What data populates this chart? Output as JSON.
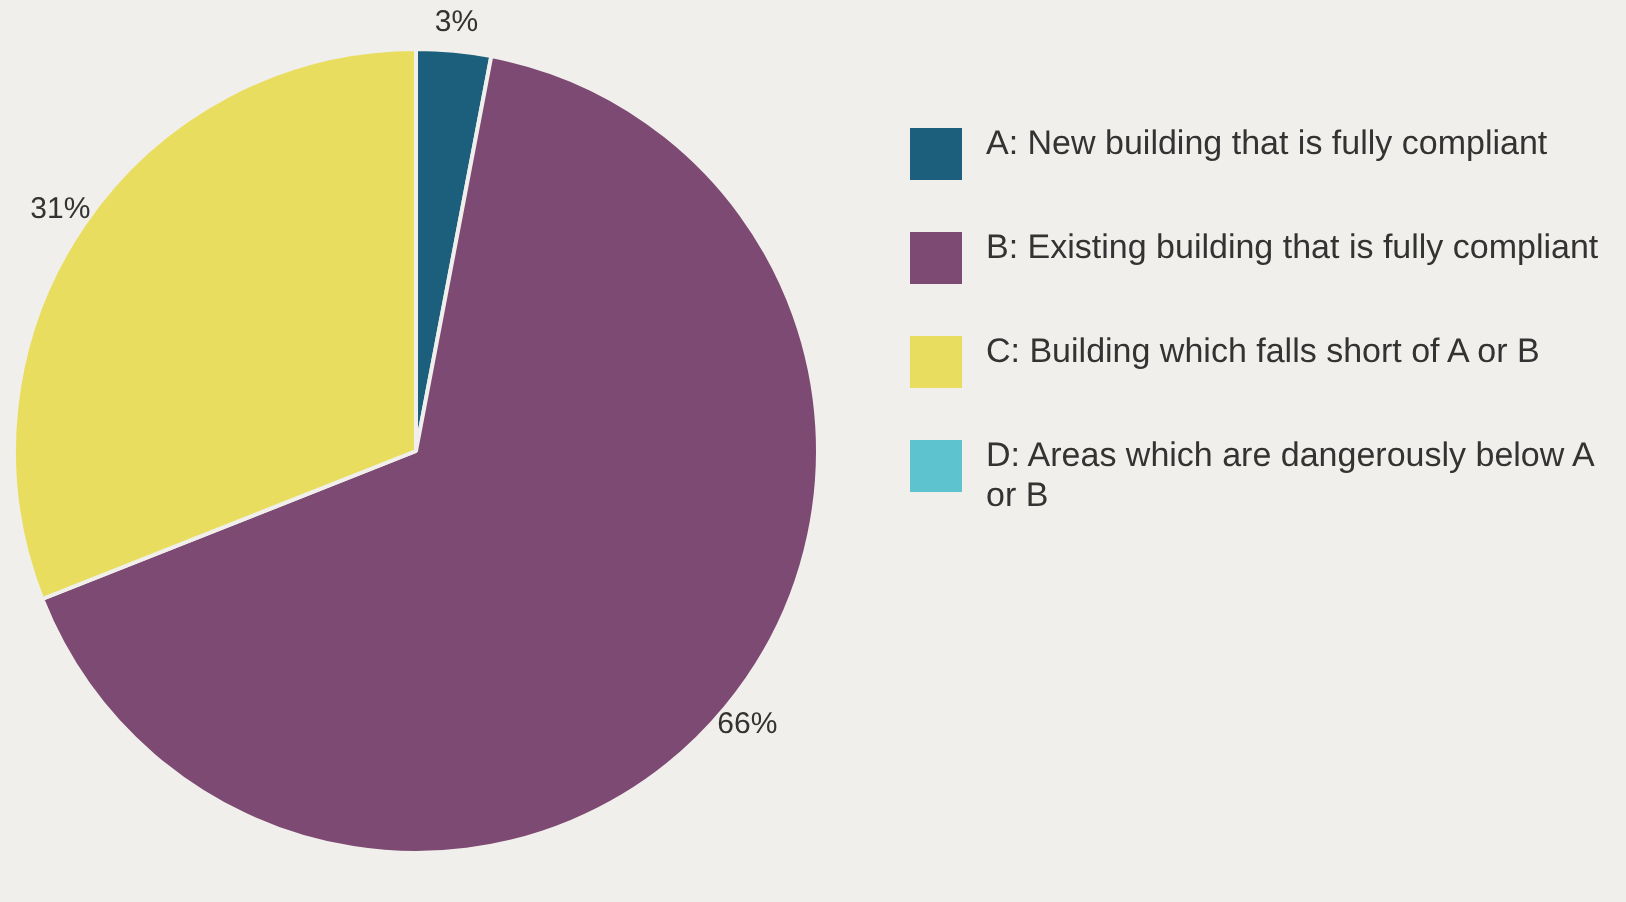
{
  "chart_data": {
    "type": "pie",
    "categories": [
      "A: New building that is fully compliant",
      "B: Existing building that is fully compliant",
      "C: Building which falls short of A or B",
      "D: Areas which are dangerously below A or B"
    ],
    "values": [
      3,
      66,
      31,
      0
    ],
    "colors": [
      "#1b5f7c",
      "#7d4a73",
      "#e9dd5f",
      "#5cc3cf"
    ],
    "value_labels": [
      "3%",
      "66%",
      "31%",
      null
    ],
    "legend": "right"
  }
}
